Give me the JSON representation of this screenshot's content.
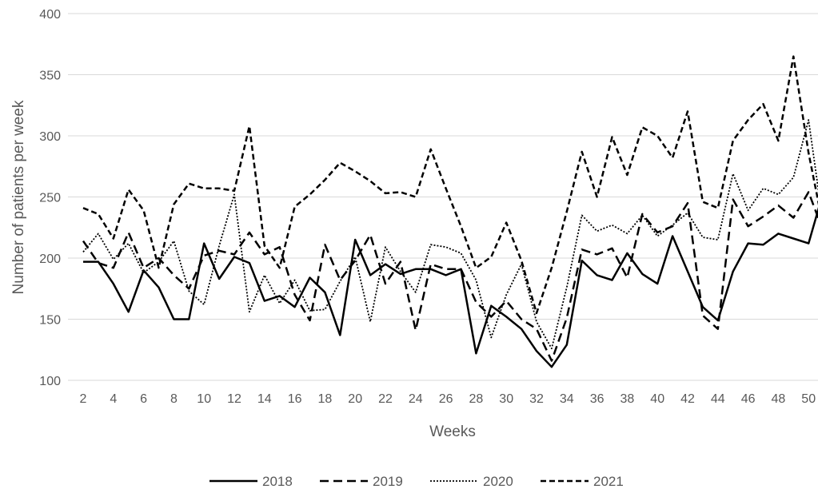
{
  "chart_data": {
    "type": "line",
    "title": "",
    "xlabel": "Weeks",
    "ylabel": "Number of patients per week",
    "xlim": [
      2,
      51
    ],
    "ylim": [
      100,
      400
    ],
    "x_tick_labels": [
      "2",
      "4",
      "6",
      "8",
      "10",
      "12",
      "14",
      "16",
      "18",
      "20",
      "22",
      "24",
      "26",
      "28",
      "30",
      "32",
      "34",
      "36",
      "38",
      "40",
      "42",
      "44",
      "46",
      "48",
      "50"
    ],
    "y_tick_labels": [
      "100",
      "150",
      "200",
      "250",
      "300",
      "350",
      "400"
    ],
    "grid": "horizontal",
    "legend_position": "bottom",
    "x": [
      2,
      3,
      4,
      5,
      6,
      7,
      8,
      9,
      10,
      11,
      12,
      13,
      14,
      15,
      16,
      17,
      18,
      19,
      20,
      21,
      22,
      23,
      24,
      25,
      26,
      27,
      28,
      29,
      30,
      31,
      32,
      33,
      34,
      35,
      36,
      37,
      38,
      39,
      40,
      41,
      42,
      43,
      44,
      45,
      46,
      47,
      48,
      49,
      50,
      51
    ],
    "series": [
      {
        "name": "2018",
        "style": "solid",
        "values": [
          197,
          197,
          179,
          156,
          190,
          176,
          150,
          150,
          212,
          183,
          201,
          196,
          165,
          169,
          160,
          184,
          172,
          137,
          215,
          186,
          195,
          187,
          191,
          191,
          186,
          191,
          122,
          161,
          152,
          142,
          124,
          111,
          129,
          198,
          186,
          182,
          204,
          187,
          179,
          218,
          189,
          160,
          149,
          189,
          212,
          211,
          220,
          216,
          212,
          255
        ]
      },
      {
        "name": "2019",
        "style": "dashed",
        "values": [
          214,
          196,
          192,
          221,
          192,
          200,
          186,
          175,
          202,
          206,
          203,
          221,
          203,
          209,
          170,
          149,
          211,
          182,
          198,
          219,
          179,
          197,
          141,
          195,
          191,
          191,
          164,
          152,
          165,
          150,
          142,
          116,
          151,
          207,
          203,
          208,
          184,
          236,
          221,
          226,
          245,
          153,
          142,
          248,
          226,
          234,
          243,
          233,
          254,
          221
        ]
      },
      {
        "name": "2020",
        "style": "dotted",
        "values": [
          205,
          220,
          199,
          212,
          188,
          197,
          214,
          173,
          162,
          210,
          252,
          156,
          186,
          163,
          182,
          157,
          158,
          181,
          201,
          148,
          209,
          189,
          172,
          211,
          209,
          204,
          182,
          135,
          170,
          195,
          148,
          126,
          176,
          235,
          222,
          227,
          220,
          235,
          218,
          227,
          237,
          217,
          215,
          269,
          239,
          257,
          252,
          266,
          313,
          225
        ]
      },
      {
        "name": "2021",
        "style": "dashdot",
        "values": [
          241,
          236,
          216,
          256,
          239,
          192,
          244,
          261,
          257,
          257,
          255,
          308,
          210,
          192,
          242,
          252,
          264,
          278,
          271,
          263,
          253,
          254,
          250,
          289,
          257,
          226,
          192,
          201,
          229,
          198,
          155,
          192,
          238,
          287,
          250,
          299,
          268,
          307,
          300,
          282,
          320,
          246,
          241,
          296,
          313,
          326,
          296,
          365,
          286,
          224
        ]
      }
    ]
  }
}
